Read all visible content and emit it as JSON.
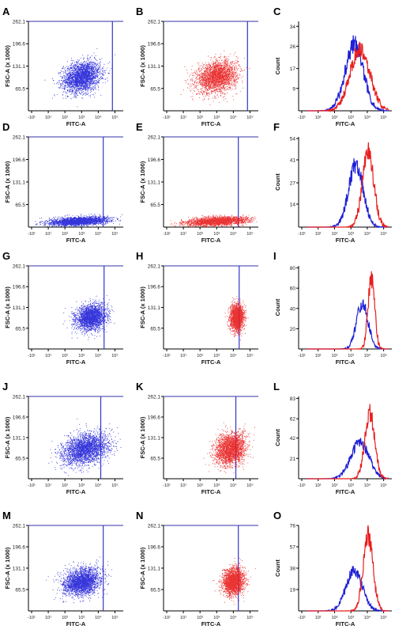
{
  "figure": {
    "colors": {
      "blue": "#1f1fd6",
      "red": "#e81e1e",
      "axis": "#000000"
    },
    "scatter_axes": {
      "xlabel": "FITC-A",
      "ylabel": "FSC-A (x 1000)",
      "yticks": [
        "65.5",
        "131.1",
        "196.6",
        "262.1"
      ],
      "xticks": [
        "-10¹",
        "10¹",
        "10²",
        "10³",
        "10⁴",
        "10⁵"
      ]
    },
    "hist_axes": {
      "xlabel": "FITC-A",
      "ylabel": "Count",
      "xticks": [
        "-10¹",
        "10¹",
        "10²",
        "10³",
        "10⁴",
        "10⁵"
      ]
    },
    "rows": [
      {
        "label_left": "A",
        "label_mid": "B",
        "label_right": "C",
        "hist_yticks": [
          "9",
          "17",
          "26",
          "34"
        ]
      },
      {
        "label_left": "D",
        "label_mid": "E",
        "label_right": "F",
        "hist_yticks": [
          "14",
          "27",
          "41",
          "54"
        ]
      },
      {
        "label_left": "G",
        "label_mid": "H",
        "label_right": "I",
        "hist_yticks": [
          "20",
          "40",
          "60",
          "80"
        ]
      },
      {
        "label_left": "J",
        "label_mid": "K",
        "label_right": "L",
        "hist_yticks": [
          "21",
          "42",
          "62",
          "83"
        ]
      },
      {
        "label_left": "M",
        "label_mid": "N",
        "label_right": "O",
        "hist_yticks": [
          "19",
          "38",
          "57",
          "76"
        ]
      }
    ]
  },
  "chart_data": [
    {
      "panel": "A",
      "type": "scatter",
      "series": [
        {
          "color": "blue",
          "x_center_log": 3.0,
          "x_spread": 0.55,
          "y_center": 100,
          "y_spread": 22,
          "points": 2600
        }
      ],
      "gate_x_log": 4.85,
      "xlabel": "FITC-A",
      "ylabel": "FSC-A (x 1000)",
      "ylim": [
        0,
        262.1
      ],
      "xlim_log": [
        0,
        5.5
      ]
    },
    {
      "panel": "B",
      "type": "scatter",
      "series": [
        {
          "color": "red",
          "x_center_log": 3.0,
          "x_spread": 0.6,
          "y_center": 100,
          "y_spread": 22,
          "points": 2600
        }
      ],
      "gate_x_log": 4.85,
      "xlabel": "FITC-A",
      "ylabel": "FSC-A (x 1000)",
      "ylim": [
        0,
        262.1
      ],
      "xlim_log": [
        0,
        5.5
      ]
    },
    {
      "panel": "C",
      "type": "line",
      "series": [
        {
          "color": "blue",
          "peak_log": 3.2,
          "width": 0.55,
          "peak_count": 27
        },
        {
          "color": "red",
          "peak_log": 3.55,
          "width": 0.6,
          "peak_count": 25
        }
      ],
      "xlabel": "FITC-A",
      "ylabel": "Count",
      "ylim": [
        0,
        36
      ],
      "xlim_log": [
        0,
        5.5
      ]
    },
    {
      "panel": "D",
      "type": "scatter",
      "series": [
        {
          "color": "blue",
          "x_center_log": 2.8,
          "x_spread": 0.9,
          "y_center": 18,
          "y_spread": 6,
          "points": 2400
        }
      ],
      "gate_x_log": 4.3,
      "xlabel": "FITC-A",
      "ylabel": "FSC-A (x 1000)",
      "ylim": [
        0,
        262.1
      ],
      "xlim_log": [
        0,
        5.5
      ]
    },
    {
      "panel": "E",
      "type": "scatter",
      "series": [
        {
          "color": "red",
          "x_center_log": 3.0,
          "x_spread": 0.9,
          "y_center": 18,
          "y_spread": 6,
          "points": 2400
        }
      ],
      "gate_x_log": 4.3,
      "xlabel": "FITC-A",
      "ylabel": "FSC-A (x 1000)",
      "ylim": [
        0,
        262.1
      ],
      "xlim_log": [
        0,
        5.5
      ]
    },
    {
      "panel": "F",
      "type": "line",
      "series": [
        {
          "color": "blue",
          "peak_log": 3.3,
          "width": 0.45,
          "peak_count": 38
        },
        {
          "color": "red",
          "peak_log": 4.05,
          "width": 0.35,
          "peak_count": 46
        }
      ],
      "xlabel": "FITC-A",
      "ylabel": "Count",
      "ylim": [
        0,
        55
      ],
      "xlim_log": [
        0,
        5.5
      ]
    },
    {
      "panel": "G",
      "type": "scatter",
      "series": [
        {
          "color": "blue",
          "x_center_log": 3.55,
          "x_spread": 0.45,
          "y_center": 100,
          "y_spread": 20,
          "points": 2400
        }
      ],
      "gate_x_log": 4.35,
      "xlabel": "FITC-A",
      "ylabel": "FSC-A (x 1000)",
      "ylim": [
        0,
        262.1
      ],
      "xlim_log": [
        0,
        5.5
      ]
    },
    {
      "panel": "H",
      "type": "scatter",
      "series": [
        {
          "color": "red",
          "x_center_log": 4.2,
          "x_spread": 0.2,
          "y_center": 100,
          "y_spread": 20,
          "points": 2200
        }
      ],
      "gate_x_log": 4.35,
      "xlabel": "FITC-A",
      "ylabel": "FSC-A (x 1000)",
      "ylim": [
        0,
        262.1
      ],
      "xlim_log": [
        0,
        5.5
      ]
    },
    {
      "panel": "I",
      "type": "line",
      "series": [
        {
          "color": "blue",
          "peak_log": 3.7,
          "width": 0.35,
          "peak_count": 45
        },
        {
          "color": "red",
          "peak_log": 4.25,
          "width": 0.2,
          "peak_count": 70
        }
      ],
      "xlabel": "FITC-A",
      "ylabel": "Count",
      "ylim": [
        0,
        82
      ],
      "xlim_log": [
        0,
        5.5
      ]
    },
    {
      "panel": "J",
      "type": "scatter",
      "series": [
        {
          "color": "blue",
          "x_center_log": 3.2,
          "x_spread": 0.7,
          "y_center": 95,
          "y_spread": 24,
          "points": 2600
        }
      ],
      "gate_x_log": 4.15,
      "xlabel": "FITC-A",
      "ylabel": "FSC-A (x 1000)",
      "ylim": [
        0,
        262.1
      ],
      "xlim_log": [
        0,
        5.5
      ]
    },
    {
      "panel": "K",
      "type": "scatter",
      "series": [
        {
          "color": "red",
          "x_center_log": 3.8,
          "x_spread": 0.45,
          "y_center": 95,
          "y_spread": 24,
          "points": 2600
        }
      ],
      "gate_x_log": 4.15,
      "xlabel": "FITC-A",
      "ylabel": "FSC-A (x 1000)",
      "ylim": [
        0,
        262.1
      ],
      "xlim_log": [
        0,
        5.5
      ]
    },
    {
      "panel": "L",
      "type": "line",
      "series": [
        {
          "color": "blue",
          "peak_log": 3.55,
          "width": 0.55,
          "peak_count": 38
        },
        {
          "color": "red",
          "peak_log": 4.15,
          "width": 0.3,
          "peak_count": 68
        }
      ],
      "xlabel": "FITC-A",
      "ylabel": "Count",
      "ylim": [
        0,
        85
      ],
      "xlim_log": [
        0,
        5.5
      ]
    },
    {
      "panel": "M",
      "type": "scatter",
      "series": [
        {
          "color": "blue",
          "x_center_log": 3.0,
          "x_spread": 0.55,
          "y_center": 90,
          "y_spread": 20,
          "points": 2600
        }
      ],
      "gate_x_log": 4.3,
      "xlabel": "FITC-A",
      "ylabel": "FSC-A (x 1000)",
      "ylim": [
        0,
        262.1
      ],
      "xlim_log": [
        0,
        5.5
      ]
    },
    {
      "panel": "N",
      "type": "scatter",
      "series": [
        {
          "color": "red",
          "x_center_log": 4.0,
          "x_spread": 0.3,
          "y_center": 90,
          "y_spread": 20,
          "points": 2400
        }
      ],
      "gate_x_log": 4.3,
      "xlabel": "FITC-A",
      "ylabel": "FSC-A (x 1000)",
      "ylim": [
        0,
        262.1
      ],
      "xlim_log": [
        0,
        5.5
      ]
    },
    {
      "panel": "O",
      "type": "line",
      "series": [
        {
          "color": "blue",
          "peak_log": 3.2,
          "width": 0.5,
          "peak_count": 36
        },
        {
          "color": "red",
          "peak_log": 4.05,
          "width": 0.3,
          "peak_count": 68
        }
      ],
      "xlabel": "FITC-A",
      "ylabel": "Count",
      "ylim": [
        0,
        76
      ],
      "xlim_log": [
        0,
        5.5
      ]
    }
  ]
}
